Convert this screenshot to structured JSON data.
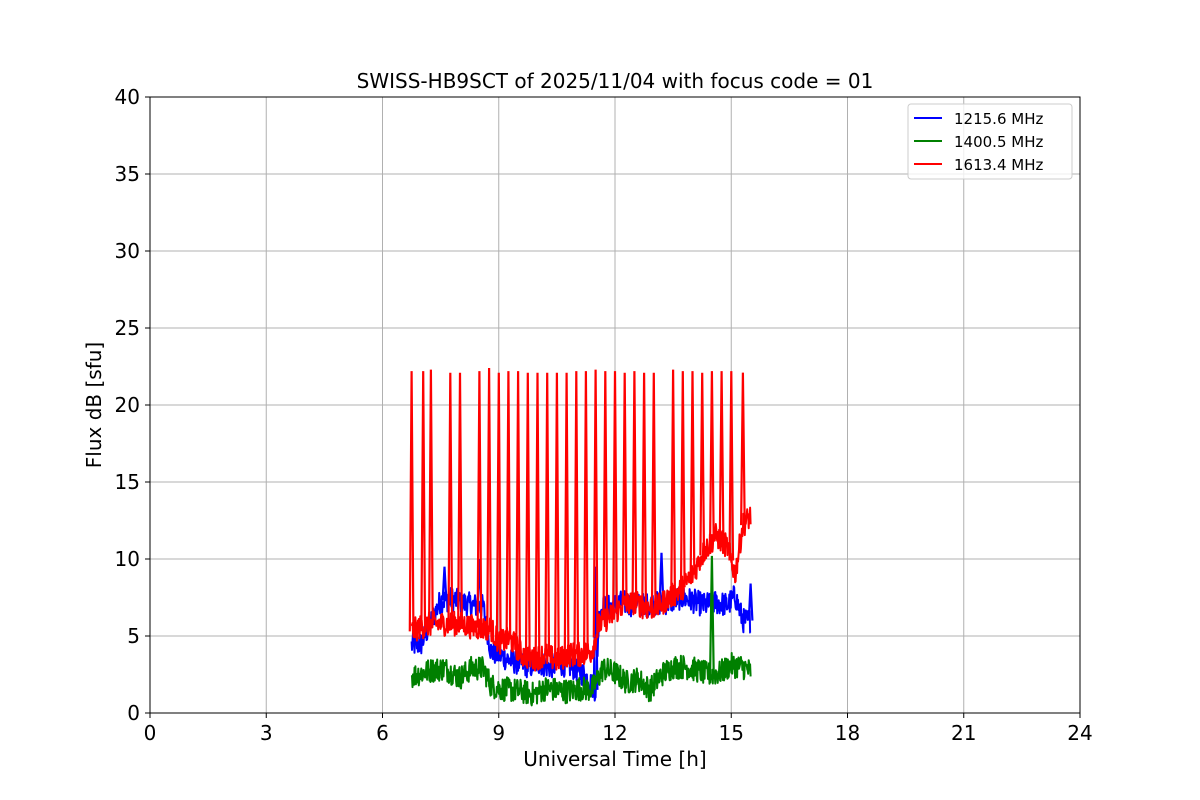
{
  "chart_data": {
    "type": "line",
    "title": "SWISS-HB9SCT of 2025/11/04 with focus code = 01",
    "xlabel": "Universal Time [h]",
    "ylabel": "Flux dB [sfu]",
    "xlim": [
      0,
      24
    ],
    "ylim": [
      0,
      40
    ],
    "xticks": [
      0,
      3,
      6,
      9,
      12,
      15,
      18,
      21,
      24
    ],
    "yticks": [
      0,
      5,
      10,
      15,
      20,
      25,
      30,
      35,
      40
    ],
    "grid": true,
    "legend_position": "top-right",
    "series": [
      {
        "name": "1215.6 MHz",
        "color": "#0000ff",
        "points": [
          [
            6.75,
            4.4
          ],
          [
            7.0,
            4.5
          ],
          [
            7.2,
            5.6
          ],
          [
            7.5,
            7.3
          ],
          [
            7.8,
            7.4
          ],
          [
            8.0,
            7.2
          ],
          [
            8.3,
            7.0
          ],
          [
            8.6,
            6.9
          ],
          [
            8.8,
            4.0
          ],
          [
            9.0,
            3.8
          ],
          [
            9.3,
            3.4
          ],
          [
            9.6,
            3.2
          ],
          [
            9.8,
            3.0
          ],
          [
            10.0,
            3.3
          ],
          [
            10.3,
            3.0
          ],
          [
            10.6,
            3.2
          ],
          [
            10.9,
            3.0
          ],
          [
            11.2,
            2.5
          ],
          [
            11.5,
            1.5
          ],
          [
            11.6,
            6.8
          ],
          [
            11.9,
            6.9
          ],
          [
            12.2,
            7.2
          ],
          [
            12.5,
            7.0
          ],
          [
            12.8,
            7.0
          ],
          [
            13.1,
            7.1
          ],
          [
            13.4,
            7.2
          ],
          [
            13.7,
            7.5
          ],
          [
            14.0,
            7.3
          ],
          [
            14.3,
            7.0
          ],
          [
            14.6,
            7.2
          ],
          [
            14.9,
            7.0
          ],
          [
            15.1,
            7.6
          ],
          [
            15.3,
            6.0
          ],
          [
            15.5,
            6.0
          ]
        ],
        "spikes": [
          [
            7.6,
            9.5
          ],
          [
            8.5,
            10.0
          ],
          [
            11.5,
            9.5
          ],
          [
            13.2,
            10.4
          ],
          [
            15.5,
            8.4
          ]
        ]
      },
      {
        "name": "1400.5 MHz",
        "color": "#008000",
        "points": [
          [
            6.75,
            2.4
          ],
          [
            7.0,
            2.6
          ],
          [
            7.3,
            2.8
          ],
          [
            7.6,
            2.9
          ],
          [
            8.0,
            2.3
          ],
          [
            8.3,
            2.9
          ],
          [
            8.6,
            2.9
          ],
          [
            8.8,
            1.8
          ],
          [
            9.0,
            1.6
          ],
          [
            9.3,
            1.5
          ],
          [
            9.6,
            1.4
          ],
          [
            9.9,
            1.2
          ],
          [
            10.2,
            1.6
          ],
          [
            10.5,
            1.5
          ],
          [
            10.8,
            1.4
          ],
          [
            11.1,
            1.6
          ],
          [
            11.4,
            1.5
          ],
          [
            11.7,
            2.9
          ],
          [
            12.0,
            2.6
          ],
          [
            12.3,
            2.0
          ],
          [
            12.6,
            2.2
          ],
          [
            12.9,
            1.5
          ],
          [
            13.2,
            2.5
          ],
          [
            13.5,
            3.0
          ],
          [
            13.8,
            3.0
          ],
          [
            14.1,
            2.8
          ],
          [
            14.4,
            2.5
          ],
          [
            14.7,
            2.6
          ],
          [
            15.0,
            3.1
          ],
          [
            15.3,
            3.0
          ],
          [
            15.5,
            2.7
          ]
        ],
        "spikes": [
          [
            14.5,
            10.2
          ]
        ]
      },
      {
        "name": "1613.4 MHz",
        "color": "#ff0000",
        "points": [
          [
            6.75,
            5.3
          ],
          [
            7.0,
            5.6
          ],
          [
            7.3,
            5.8
          ],
          [
            7.6,
            5.8
          ],
          [
            8.0,
            5.8
          ],
          [
            8.3,
            5.6
          ],
          [
            8.6,
            5.5
          ],
          [
            8.8,
            5.5
          ],
          [
            9.0,
            4.6
          ],
          [
            9.3,
            4.8
          ],
          [
            9.6,
            3.8
          ],
          [
            9.9,
            3.5
          ],
          [
            10.2,
            3.8
          ],
          [
            10.5,
            3.4
          ],
          [
            10.8,
            3.8
          ],
          [
            11.1,
            3.8
          ],
          [
            11.4,
            4.0
          ],
          [
            11.6,
            5.8
          ],
          [
            11.9,
            6.3
          ],
          [
            12.2,
            7.0
          ],
          [
            12.5,
            7.2
          ],
          [
            12.8,
            6.8
          ],
          [
            13.1,
            6.9
          ],
          [
            13.4,
            7.5
          ],
          [
            13.7,
            8.0
          ],
          [
            14.0,
            9.0
          ],
          [
            14.3,
            10.5
          ],
          [
            14.6,
            11.5
          ],
          [
            14.9,
            10.8
          ],
          [
            15.1,
            9.0
          ],
          [
            15.3,
            12.2
          ],
          [
            15.5,
            12.8
          ]
        ],
        "spikes": [
          [
            6.75,
            22.2
          ],
          [
            7.05,
            22.2
          ],
          [
            7.25,
            22.3
          ],
          [
            7.75,
            22.1
          ],
          [
            8.0,
            22.1
          ],
          [
            8.5,
            22.2
          ],
          [
            8.75,
            22.4
          ],
          [
            9.0,
            22.1
          ],
          [
            9.25,
            22.2
          ],
          [
            9.5,
            22.2
          ],
          [
            9.75,
            22.1
          ],
          [
            10.0,
            22.1
          ],
          [
            10.25,
            22.1
          ],
          [
            10.5,
            22.1
          ],
          [
            10.75,
            22.1
          ],
          [
            11.0,
            22.2
          ],
          [
            11.25,
            22.2
          ],
          [
            11.5,
            22.3
          ],
          [
            11.75,
            22.2
          ],
          [
            12.0,
            22.2
          ],
          [
            12.25,
            22.1
          ],
          [
            12.5,
            22.2
          ],
          [
            12.75,
            22.1
          ],
          [
            13.0,
            22.1
          ],
          [
            13.5,
            22.3
          ],
          [
            13.75,
            22.2
          ],
          [
            14.0,
            22.2
          ],
          [
            14.25,
            22.1
          ],
          [
            14.5,
            22.2
          ],
          [
            14.75,
            22.2
          ],
          [
            15.0,
            22.2
          ],
          [
            15.3,
            22.1
          ]
        ]
      }
    ]
  }
}
